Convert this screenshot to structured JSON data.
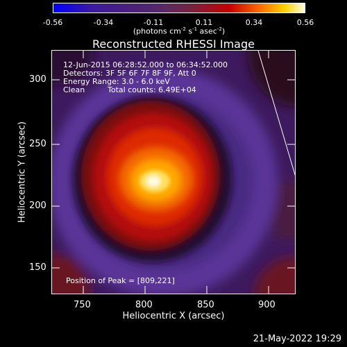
{
  "colorbar": {
    "ticks": [
      "-0.56",
      "-0.34",
      "-0.11",
      "0.11",
      "0.34",
      "0.56"
    ],
    "units": "(photons cm^-2 s^-1 asec^-2)"
  },
  "title": "Reconstructed RHESSI Image",
  "info": {
    "time_range": "12-Jun-2015 06:28:52.000 to 06:34:52.000",
    "detectors": "Detectors: 3F 5F 6F 7F 8F 9F, Att 0",
    "energy_range": "Energy Range: 3.0 - 6.0 keV",
    "method": "Clean",
    "total_counts": "Total counts: 6.49E+04",
    "peak": "Position of Peak = [809,221]"
  },
  "axes": {
    "xlabel": "Heliocentric X (arcsec)",
    "ylabel": "Heliocentric Y (arcsec)",
    "xticks": [
      "750",
      "800",
      "850",
      "900"
    ],
    "yticks": [
      "300",
      "250",
      "200",
      "150"
    ]
  },
  "timestamp": "21-May-2022 19:29",
  "colors": {
    "background": "#000000",
    "text": "#ffffff"
  }
}
